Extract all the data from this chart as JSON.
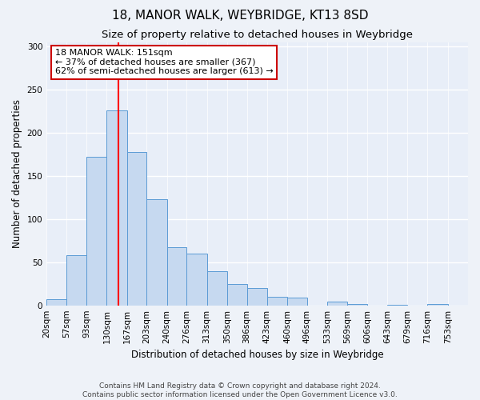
{
  "title": "18, MANOR WALK, WEYBRIDGE, KT13 8SD",
  "subtitle": "Size of property relative to detached houses in Weybridge",
  "xlabel": "Distribution of detached houses by size in Weybridge",
  "ylabel": "Number of detached properties",
  "bar_labels": [
    "20sqm",
    "57sqm",
    "93sqm",
    "130sqm",
    "167sqm",
    "203sqm",
    "240sqm",
    "276sqm",
    "313sqm",
    "350sqm",
    "386sqm",
    "423sqm",
    "460sqm",
    "496sqm",
    "533sqm",
    "569sqm",
    "606sqm",
    "643sqm",
    "679sqm",
    "716sqm",
    "753sqm"
  ],
  "bar_values": [
    7,
    58,
    172,
    226,
    178,
    123,
    67,
    60,
    40,
    25,
    20,
    10,
    9,
    0,
    4,
    2,
    0,
    1,
    0,
    2,
    0
  ],
  "bar_color": "#c6d9f0",
  "bar_edge_color": "#5b9bd5",
  "property_line_x": 151,
  "bin_edges": [
    20,
    57,
    93,
    130,
    167,
    203,
    240,
    276,
    313,
    350,
    386,
    423,
    460,
    496,
    533,
    569,
    606,
    643,
    679,
    716,
    753,
    790
  ],
  "annotation_text": "18 MANOR WALK: 151sqm\n← 37% of detached houses are smaller (367)\n62% of semi-detached houses are larger (613) →",
  "annotation_box_color": "#ffffff",
  "annotation_box_edge_color": "#cc0000",
  "ylim": [
    0,
    305
  ],
  "yticks": [
    0,
    50,
    100,
    150,
    200,
    250,
    300
  ],
  "footer1": "Contains HM Land Registry data © Crown copyright and database right 2024.",
  "footer2": "Contains public sector information licensed under the Open Government Licence v3.0.",
  "background_color": "#eef2f8",
  "plot_background": "#e8eef8",
  "grid_color": "#ffffff",
  "title_fontsize": 11,
  "subtitle_fontsize": 9.5,
  "label_fontsize": 8.5,
  "tick_fontsize": 7.5,
  "footer_fontsize": 6.5,
  "annot_fontsize": 8
}
